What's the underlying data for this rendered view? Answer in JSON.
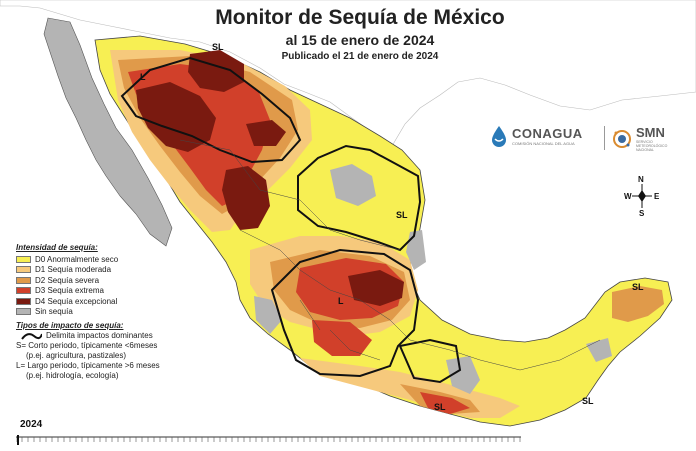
{
  "map": {
    "title": "Monitor de Sequía de México",
    "subtitle": "al 15 de enero de 2024",
    "published": "Publicado el 21 de enero de 2024",
    "labels": [
      "SL",
      "L",
      "SL",
      "L",
      "SL",
      "SL",
      "SL"
    ],
    "compass": [
      "N",
      "W",
      "E",
      "S"
    ]
  },
  "legend": {
    "title": "Intensidad de sequía:",
    "items": [
      {
        "label": "D0 Anormalmente seco",
        "color": "#f7ef53"
      },
      {
        "label": "D1 Sequía moderada",
        "color": "#f6c97c"
      },
      {
        "label": "D2 Sequía severa",
        "color": "#e09a4a"
      },
      {
        "label": "D3 Sequía extrema",
        "color": "#d1402a"
      },
      {
        "label": "D4 Sequía excepcional",
        "color": "#7a1a10"
      },
      {
        "label": "Sin sequía",
        "color": "#b4b4b4"
      }
    ],
    "impact_title": "Tipos de impacto de sequía:",
    "impact_line": "Delimita impactos dominantes",
    "impact_s1": "S= Corto periodo, típicamente <6meses",
    "impact_s2": "(p.ej. agricultura, pastizales)",
    "impact_l1": "L= Largo periodo, típicamente >6 meses",
    "impact_l2": "(p.ej. hidrología, ecología)"
  },
  "logos": {
    "conagua": "CONAGUA",
    "conagua_sub": "COMISIÓN NACIONAL DEL AGUA",
    "smn": "SMN",
    "smn_sub": "SERVICIO METEOROLÓGICO NACIONAL"
  },
  "timeline": {
    "year": "2024"
  }
}
